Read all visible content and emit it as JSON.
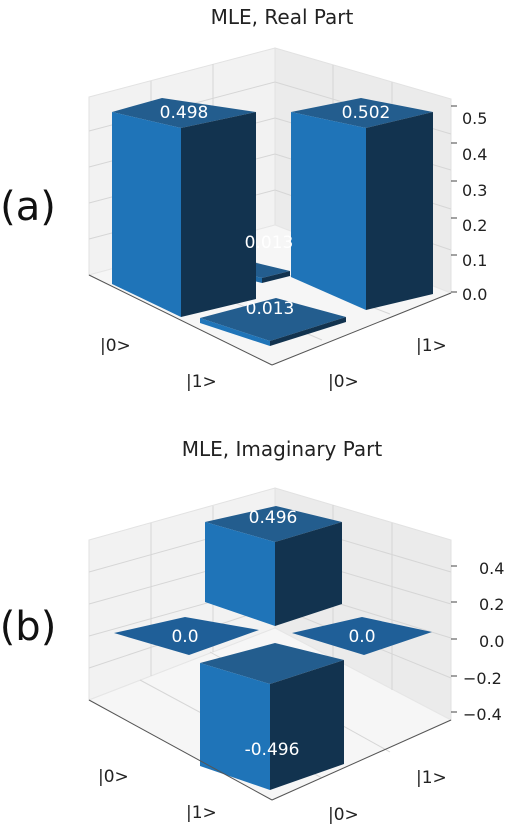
{
  "chart_data": [
    {
      "type": "bar3d",
      "panel_label": "(a)",
      "title": "MLE, Real Part",
      "row_labels": [
        "|0>",
        "|1>"
      ],
      "col_labels": [
        "|0>",
        "|1>"
      ],
      "zticks": [
        "0.5",
        "0.4",
        "0.3",
        "0.2",
        "0.1",
        "0.0"
      ],
      "zlim": [
        0,
        0.5
      ],
      "grid": true,
      "color": "#1f77b4",
      "values": [
        [
          0.498,
          0.013
        ],
        [
          0.013,
          0.502
        ]
      ],
      "data_labels": [
        [
          "0.498",
          "0.013"
        ],
        [
          "0.013",
          "0.502"
        ]
      ]
    },
    {
      "type": "bar3d",
      "panel_label": "(b)",
      "title": "MLE, Imaginary Part",
      "row_labels": [
        "|0>",
        "|1>"
      ],
      "col_labels": [
        "|0>",
        "|1>"
      ],
      "zticks": [
        "0.4",
        "0.2",
        "0.0",
        "−0.2",
        "−0.4"
      ],
      "zlim": [
        -0.5,
        0.5
      ],
      "grid": true,
      "color": "#1f77b4",
      "values": [
        [
          0.0,
          0.496
        ],
        [
          -0.496,
          0.0
        ]
      ],
      "data_labels": [
        [
          "0.0",
          "0.496"
        ],
        [
          "-0.496",
          "0.0"
        ]
      ]
    }
  ]
}
